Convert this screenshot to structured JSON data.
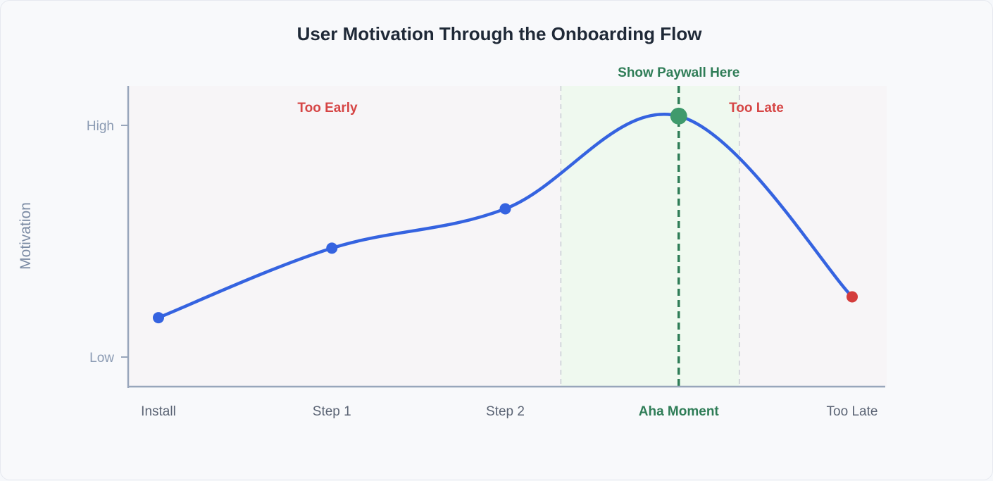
{
  "chart_data": {
    "type": "line",
    "title": "User Motivation Through the Onboarding Flow",
    "ylabel": "Motivation",
    "xlabel": "",
    "categories": [
      "Install",
      "Step 1",
      "Step 2",
      "Aha Moment",
      "Too Late"
    ],
    "highlighted_category": "Aha Moment",
    "y_ticks": [
      {
        "label": "Low",
        "value": 0
      },
      {
        "label": "High",
        "value": 1
      }
    ],
    "ylim": [
      -0.13,
      1.17
    ],
    "series": [
      {
        "values": [
          0.17,
          0.47,
          0.64,
          1.04,
          0.26
        ],
        "color": "#3563e0",
        "point_colors": [
          "#3563e0",
          "#3563e0",
          "#3563e0",
          "#3f9a6c",
          "#d43c3c"
        ]
      }
    ],
    "zones": [
      {
        "label": "Too Early",
        "from": 0,
        "to": 2.32,
        "tone": "red"
      },
      {
        "label": "Show Paywall Here",
        "from": 2.32,
        "to": 3.35,
        "tone": "green",
        "marker_at": 3
      },
      {
        "label": "Too Late",
        "from": 3.35,
        "to": 4.5,
        "tone": "red"
      }
    ],
    "grid": false,
    "legend": "none",
    "colors": {
      "line": "#3563e0",
      "aha_point": "#3f9a6c",
      "late_point": "#d43c3c",
      "axis": "#98a6bb",
      "zone_red_bg": "#f7f5f7",
      "zone_green_bg": "#eff9ef",
      "divider": "#d4d7dc",
      "paywall_line": "#2f7d57"
    }
  }
}
